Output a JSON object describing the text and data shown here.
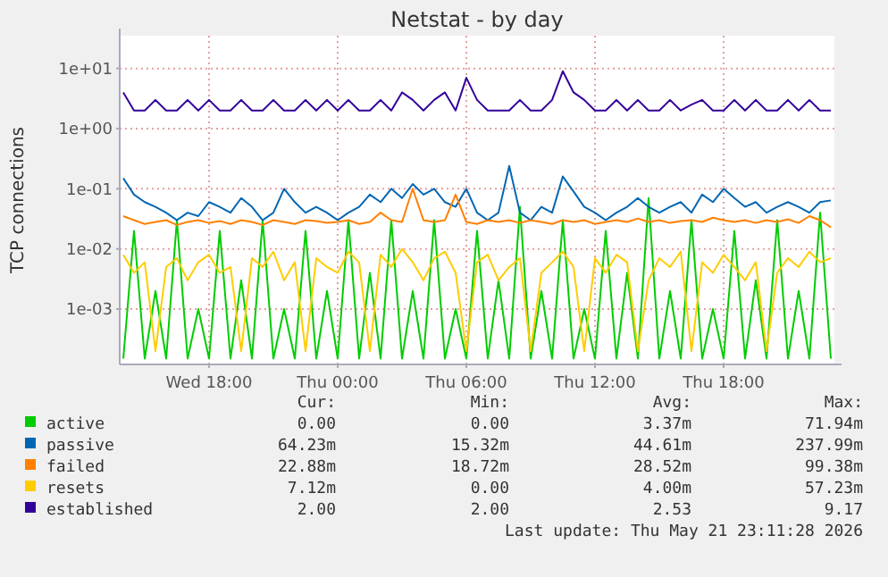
{
  "chart_data": {
    "type": "line",
    "title": "Netstat - by day",
    "ylabel": "TCP connections",
    "log": "y",
    "grid": true,
    "legend": "bottom",
    "line_style": "solid",
    "xlim": [
      "2026-05-20T13:50",
      "2026-05-21T23:10"
    ],
    "xticks": [
      {
        "value": "2026-05-20T18:00",
        "label": "Wed 18:00"
      },
      {
        "value": "2026-05-21T00:00",
        "label": "Thu 00:00"
      },
      {
        "value": "2026-05-21T06:00",
        "label": "Thu 06:00"
      },
      {
        "value": "2026-05-21T12:00",
        "label": "Thu 12:00"
      },
      {
        "value": "2026-05-21T18:00",
        "label": "Thu 18:00"
      }
    ],
    "ylim": [
      0.00012,
      35
    ],
    "yticks": [
      {
        "value": 0.001,
        "label": "1e-03"
      },
      {
        "value": 0.01,
        "label": "1e-02"
      },
      {
        "value": 0.1,
        "label": "1e-01"
      },
      {
        "value": 1,
        "label": "1e+00"
      },
      {
        "value": 10,
        "label": "1e+01"
      }
    ],
    "x": [
      "2026-05-20T14:00",
      "2026-05-20T14:30",
      "2026-05-20T15:00",
      "2026-05-20T15:30",
      "2026-05-20T16:00",
      "2026-05-20T16:30",
      "2026-05-20T17:00",
      "2026-05-20T17:30",
      "2026-05-20T18:00",
      "2026-05-20T18:30",
      "2026-05-20T19:00",
      "2026-05-20T19:30",
      "2026-05-20T20:00",
      "2026-05-20T20:30",
      "2026-05-20T21:00",
      "2026-05-20T21:30",
      "2026-05-20T22:00",
      "2026-05-20T22:30",
      "2026-05-20T23:00",
      "2026-05-20T23:30",
      "2026-05-21T00:00",
      "2026-05-21T00:30",
      "2026-05-21T01:00",
      "2026-05-21T01:30",
      "2026-05-21T02:00",
      "2026-05-21T02:30",
      "2026-05-21T03:00",
      "2026-05-21T03:30",
      "2026-05-21T04:00",
      "2026-05-21T04:30",
      "2026-05-21T05:00",
      "2026-05-21T05:30",
      "2026-05-21T06:00",
      "2026-05-21T06:30",
      "2026-05-21T07:00",
      "2026-05-21T07:30",
      "2026-05-21T08:00",
      "2026-05-21T08:30",
      "2026-05-21T09:00",
      "2026-05-21T09:30",
      "2026-05-21T10:00",
      "2026-05-21T10:30",
      "2026-05-21T11:00",
      "2026-05-21T11:30",
      "2026-05-21T12:00",
      "2026-05-21T12:30",
      "2026-05-21T13:00",
      "2026-05-21T13:30",
      "2026-05-21T14:00",
      "2026-05-21T14:30",
      "2026-05-21T15:00",
      "2026-05-21T15:30",
      "2026-05-21T16:00",
      "2026-05-21T16:30",
      "2026-05-21T17:00",
      "2026-05-21T17:30",
      "2026-05-21T18:00",
      "2026-05-21T18:30",
      "2026-05-21T19:00",
      "2026-05-21T19:30",
      "2026-05-21T20:00",
      "2026-05-21T20:30",
      "2026-05-21T21:00",
      "2026-05-21T21:30",
      "2026-05-21T22:00",
      "2026-05-21T22:30",
      "2026-05-21T23:00"
    ],
    "series": [
      {
        "name": "active",
        "color": "#00cc00",
        "values": [
          0.00015,
          0.02,
          0.00015,
          0.002,
          0.00015,
          0.03,
          0.00015,
          0.001,
          0.00015,
          0.02,
          0.00015,
          0.003,
          0.00015,
          0.03,
          0.00015,
          0.001,
          0.00015,
          0.02,
          0.00015,
          0.002,
          0.00015,
          0.03,
          0.00015,
          0.004,
          0.00015,
          0.03,
          0.00015,
          0.002,
          0.00015,
          0.03,
          0.00015,
          0.001,
          0.00015,
          0.02,
          0.00015,
          0.003,
          0.00015,
          0.05,
          0.00015,
          0.002,
          0.00015,
          0.03,
          0.00015,
          0.001,
          0.00015,
          0.02,
          0.00015,
          0.004,
          0.00015,
          0.07,
          0.00015,
          0.002,
          0.00015,
          0.03,
          0.00015,
          0.001,
          0.00015,
          0.02,
          0.00015,
          0.003,
          0.00015,
          0.03,
          0.00015,
          0.002,
          0.00015,
          0.04,
          0.00015
        ]
      },
      {
        "name": "passive",
        "color": "#0066b3",
        "values": [
          0.15,
          0.08,
          0.06,
          0.05,
          0.04,
          0.03,
          0.04,
          0.035,
          0.06,
          0.05,
          0.04,
          0.07,
          0.05,
          0.03,
          0.04,
          0.1,
          0.06,
          0.04,
          0.05,
          0.04,
          0.03,
          0.04,
          0.05,
          0.08,
          0.06,
          0.1,
          0.07,
          0.12,
          0.08,
          0.1,
          0.06,
          0.05,
          0.1,
          0.04,
          0.03,
          0.04,
          0.24,
          0.04,
          0.03,
          0.05,
          0.04,
          0.16,
          0.09,
          0.05,
          0.04,
          0.03,
          0.04,
          0.05,
          0.07,
          0.05,
          0.04,
          0.05,
          0.06,
          0.04,
          0.08,
          0.06,
          0.1,
          0.07,
          0.05,
          0.06,
          0.04,
          0.05,
          0.06,
          0.05,
          0.04,
          0.06,
          0.064
        ]
      },
      {
        "name": "failed",
        "color": "#ff8000",
        "values": [
          0.035,
          0.03,
          0.026,
          0.028,
          0.03,
          0.025,
          0.028,
          0.03,
          0.027,
          0.029,
          0.026,
          0.03,
          0.028,
          0.025,
          0.03,
          0.028,
          0.026,
          0.03,
          0.029,
          0.027,
          0.028,
          0.03,
          0.026,
          0.028,
          0.04,
          0.03,
          0.028,
          0.1,
          0.03,
          0.028,
          0.03,
          0.08,
          0.028,
          0.026,
          0.03,
          0.028,
          0.03,
          0.027,
          0.03,
          0.028,
          0.026,
          0.03,
          0.028,
          0.03,
          0.026,
          0.028,
          0.03,
          0.028,
          0.032,
          0.028,
          0.03,
          0.027,
          0.029,
          0.03,
          0.028,
          0.033,
          0.03,
          0.028,
          0.03,
          0.027,
          0.03,
          0.028,
          0.031,
          0.027,
          0.035,
          0.03,
          0.023
        ]
      },
      {
        "name": "resets",
        "color": "#ffcc00",
        "values": [
          0.008,
          0.004,
          0.006,
          0.0002,
          0.005,
          0.007,
          0.003,
          0.006,
          0.008,
          0.004,
          0.005,
          0.0002,
          0.007,
          0.005,
          0.009,
          0.003,
          0.006,
          0.0002,
          0.007,
          0.005,
          0.004,
          0.009,
          0.006,
          0.0002,
          0.008,
          0.005,
          0.01,
          0.006,
          0.003,
          0.007,
          0.009,
          0.004,
          0.0002,
          0.006,
          0.008,
          0.003,
          0.005,
          0.007,
          0.0002,
          0.004,
          0.006,
          0.009,
          0.005,
          0.0002,
          0.007,
          0.004,
          0.008,
          0.006,
          0.0002,
          0.003,
          0.007,
          0.005,
          0.009,
          0.0002,
          0.006,
          0.004,
          0.008,
          0.005,
          0.003,
          0.006,
          0.0002,
          0.004,
          0.007,
          0.005,
          0.009,
          0.006,
          0.007
        ]
      },
      {
        "name": "established",
        "color": "#330099",
        "values": [
          4,
          2,
          2,
          3,
          2,
          2,
          3,
          2,
          3,
          2,
          2,
          3,
          2,
          2,
          3,
          2,
          2,
          3,
          2,
          3,
          2,
          3,
          2,
          2,
          3,
          2,
          4,
          3,
          2,
          3,
          4,
          2,
          7,
          3,
          2,
          2,
          2,
          3,
          2,
          2,
          3,
          9,
          4,
          3,
          2,
          2,
          3,
          2,
          3,
          2,
          2,
          3,
          2,
          2.5,
          3,
          2,
          2,
          3,
          2,
          3,
          2,
          2,
          3,
          2,
          3,
          2,
          2
        ]
      }
    ],
    "annotations": [
      "Cur:",
      "Min:",
      "Avg:",
      "Max:",
      "0.00",
      "0.00",
      "3.37m",
      "71.94m",
      "64.23m",
      "15.32m",
      "44.61m",
      "237.99m",
      "22.88m",
      "18.72m",
      "28.52m",
      "99.38m",
      "7.12m",
      "0.00",
      "4.00m",
      "57.23m",
      "2.00",
      "2.00",
      "2.53",
      "9.17",
      "Last update: Thu May 21 23:11:28 2026"
    ]
  }
}
